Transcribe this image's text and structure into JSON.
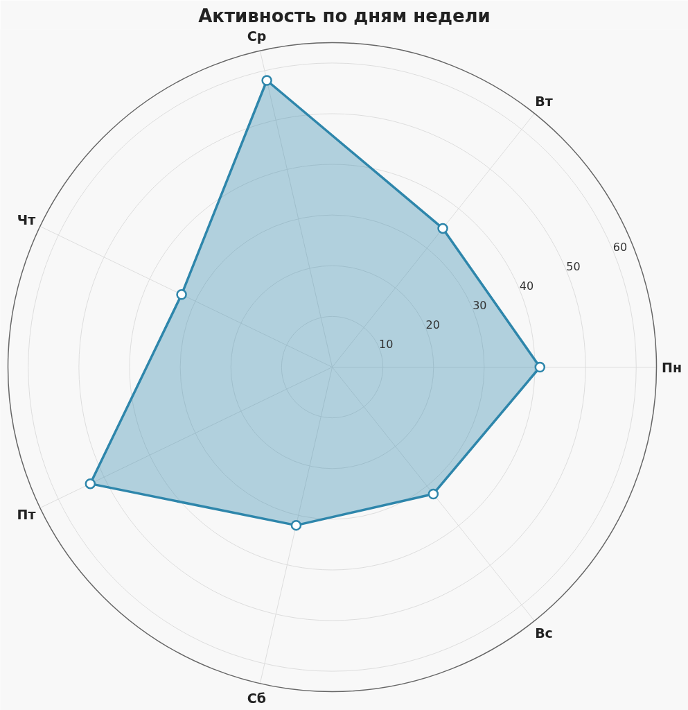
{
  "chart_data": {
    "type": "radar",
    "title": "Активность по дням недели",
    "categories": [
      "Ср",
      "Вт",
      "Пн",
      "Вс",
      "Сб",
      "Пт",
      "Чт"
    ],
    "series": [
      {
        "color": "#2e86ab",
        "values": [
          58,
          35,
          41,
          32,
          32,
          53,
          33
        ]
      }
    ],
    "ylim": [
      0,
      64
    ],
    "yticks": [
      10,
      20,
      30,
      40,
      50,
      60
    ],
    "grid": true,
    "marker": "circle",
    "line_style": "solid"
  }
}
